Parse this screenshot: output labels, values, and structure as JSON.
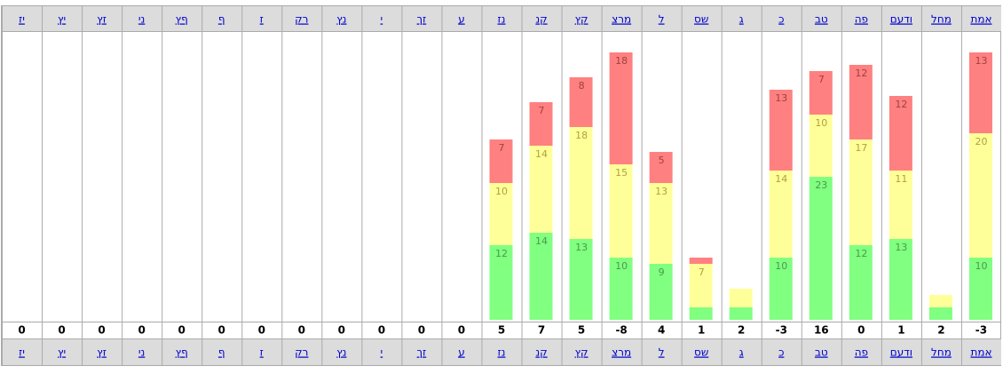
{
  "columns": [
    "אמת",
    "מחל",
    "ודעם",
    "פה",
    "טב",
    "כ",
    "ג",
    "שס",
    "ל",
    "מרצ",
    "קץ",
    "קנ",
    "נז",
    "ע",
    "זך",
    "י",
    "נץ",
    "רק",
    "ז",
    "ף",
    "ףץ",
    "ני",
    "זץ",
    "יץ",
    "יז"
  ],
  "series": [
    {
      "color": "#80ff80",
      "values": [
        10,
        2,
        13,
        12,
        23,
        10,
        2,
        2,
        9,
        10,
        13,
        14,
        12,
        0,
        0,
        0,
        0,
        0,
        0,
        0,
        0,
        0,
        0,
        0,
        0
      ]
    },
    {
      "color": "#ffff99",
      "values": [
        20,
        2,
        11,
        17,
        10,
        14,
        3,
        7,
        13,
        15,
        18,
        14,
        10,
        0,
        0,
        0,
        0,
        0,
        0,
        0,
        0,
        0,
        0,
        0,
        0
      ]
    },
    {
      "color": "#ff8080",
      "values": [
        13,
        0,
        12,
        12,
        7,
        13,
        0,
        1,
        5,
        18,
        8,
        7,
        7,
        0,
        0,
        0,
        0,
        0,
        0,
        0,
        0,
        0,
        0,
        0,
        0
      ]
    }
  ],
  "totals": [
    -3,
    2,
    1,
    0,
    16,
    -3,
    2,
    1,
    4,
    -8,
    5,
    7,
    5,
    0,
    0,
    0,
    0,
    0,
    0,
    0,
    0,
    0,
    0,
    0,
    0
  ]
}
